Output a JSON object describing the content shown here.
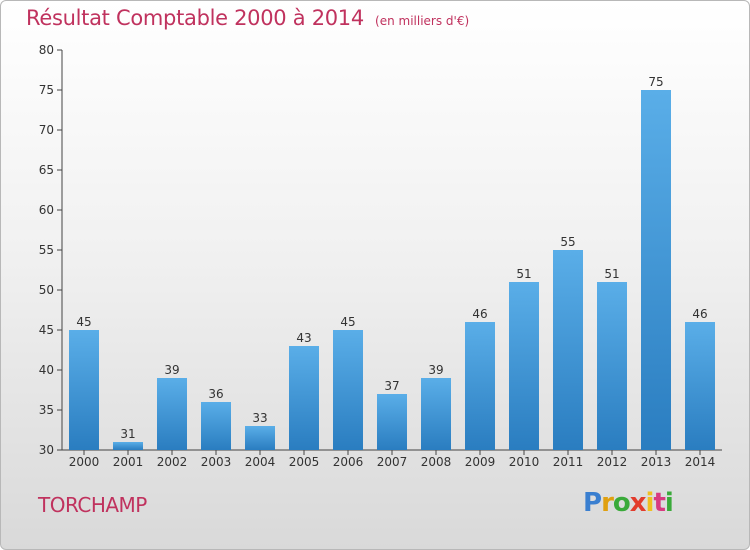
{
  "header": {
    "title": "Résultat Comptable 2000 à 2014",
    "subtitle": "(en milliers d'€)"
  },
  "commune": "TORCHAMP",
  "logo": {
    "letters": [
      "P",
      "r",
      "o",
      "x",
      "i",
      "t",
      "i"
    ],
    "colors": [
      "#3a7fd0",
      "#e0a010",
      "#3aaa3a",
      "#e23c2c",
      "#f0c020",
      "#d83a80",
      "#3aaa3a"
    ]
  },
  "colors": {
    "bar_top": "#5aaee8",
    "bar_bottom": "#2a7dc0",
    "title": "#c0325e"
  },
  "chart_data": {
    "type": "bar",
    "title": "Résultat Comptable 2000 à 2014",
    "subtitle": "(en milliers d'€)",
    "categories": [
      "2000",
      "2001",
      "2002",
      "2003",
      "2004",
      "2005",
      "2006",
      "2007",
      "2008",
      "2009",
      "2010",
      "2011",
      "2012",
      "2013",
      "2014"
    ],
    "values": [
      45,
      31,
      39,
      36,
      33,
      43,
      45,
      37,
      39,
      46,
      51,
      55,
      51,
      75,
      46
    ],
    "ylim": [
      30,
      80
    ],
    "yticks": [
      30,
      35,
      40,
      45,
      50,
      55,
      60,
      65,
      70,
      75,
      80
    ],
    "grid": false
  }
}
